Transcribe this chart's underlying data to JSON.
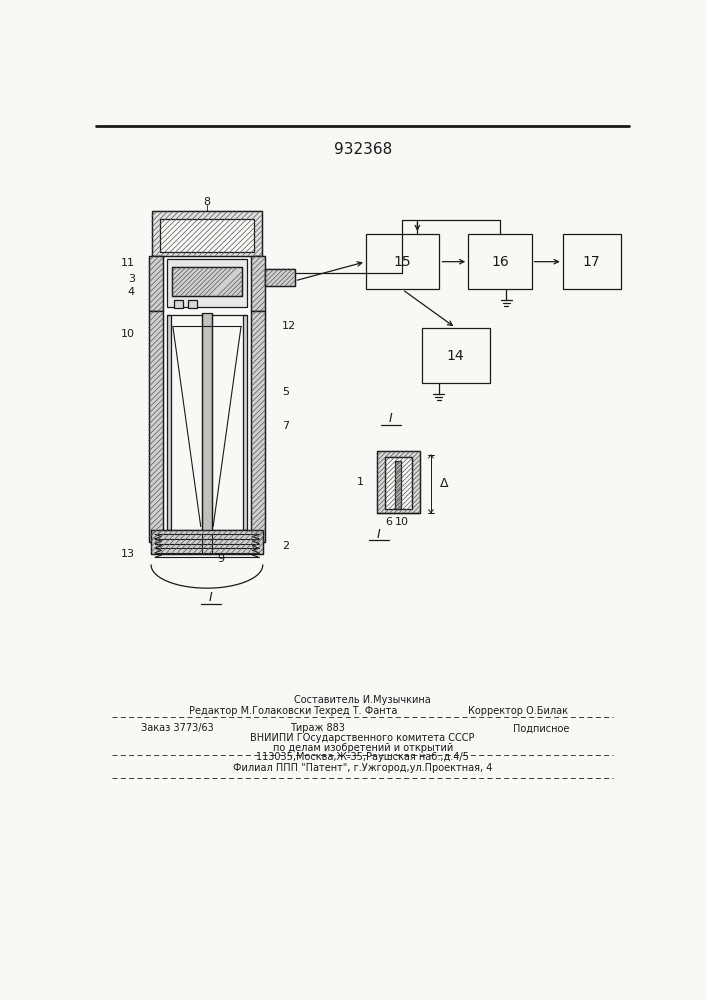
{
  "patent_number": "932368",
  "bg": "#f8f8f5",
  "lc": "#1a1a1a",
  "tc": "#1a1a1a",
  "hc": "#555555",
  "footer_sestavitel": "Составитель И.Музычкина",
  "footer_redaktor": "Редактор М.Голаковски",
  "footer_tehred": "Техред Т. Фанта",
  "footer_korrektor": "Корректор О.Билак",
  "footer_zakaz": "Заказ 3773/63",
  "footer_tirazh": "Тираж 883",
  "footer_podpisnoe": "Подписное",
  "footer_vniip1": "ВНИИПИ ГОсударственного комитета СССР",
  "footer_vniip2": "по делам изобретений и открытий",
  "footer_addr": "113035,Москва,Ж-35,Раушская наб.,д.4/5",
  "footer_filial": "Филиал ППП \"Патент\", г.Ужгород,ул.Проектная, 4"
}
